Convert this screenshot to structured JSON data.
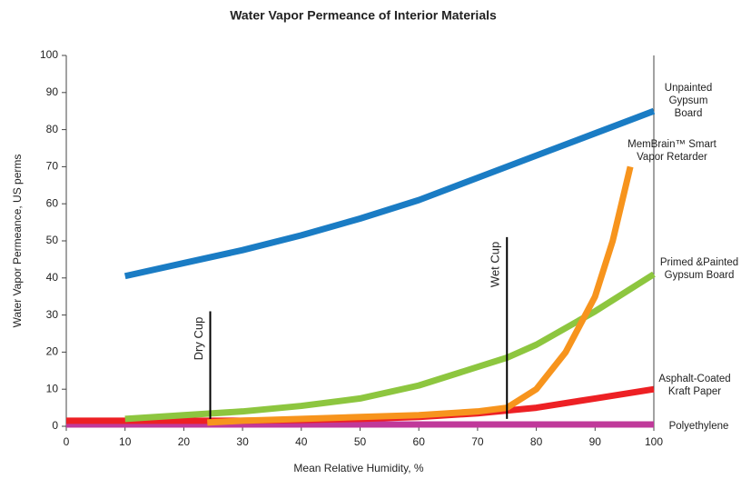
{
  "chart_data": {
    "type": "line",
    "title": "Water Vapor Permeance of Interior Materials",
    "x_label": "Mean Relative Humidity, %",
    "y_label": "Water Vapor Permeance, US perms",
    "xlim": [
      0,
      100
    ],
    "ylim": [
      0,
      100
    ],
    "xticks": [
      0,
      10,
      20,
      30,
      40,
      50,
      60,
      70,
      80,
      90,
      100
    ],
    "yticks": [
      0,
      10,
      20,
      30,
      40,
      50,
      60,
      70,
      80,
      90,
      100
    ],
    "series": [
      {
        "name": "Unpainted Gypsum Board",
        "color": "#1a7cc4",
        "x": [
          10,
          20,
          30,
          40,
          50,
          60,
          70,
          80,
          90,
          100
        ],
        "values": [
          40.5,
          44,
          47.5,
          51.5,
          56,
          61,
          67,
          73,
          79,
          85
        ]
      },
      {
        "name": "MemBrain™ Smart Vapor Retarder",
        "color": "#f7941d",
        "x": [
          24,
          30,
          40,
          50,
          60,
          70,
          75,
          80,
          85,
          90,
          93,
          96
        ],
        "values": [
          1,
          1.5,
          2,
          2.5,
          3,
          4,
          5,
          10,
          20,
          35,
          50,
          70
        ]
      },
      {
        "name": "Primed &Painted Gypsum Board",
        "color": "#8dc63f",
        "x": [
          10,
          20,
          30,
          40,
          50,
          60,
          70,
          75,
          80,
          90,
          100
        ],
        "values": [
          2,
          3,
          4,
          5.5,
          7.5,
          11,
          16,
          18.5,
          22,
          31,
          41
        ]
      },
      {
        "name": "Asphalt-Coated Kraft Paper",
        "color": "#ed2024",
        "x": [
          0,
          10,
          20,
          30,
          40,
          50,
          60,
          70,
          80,
          90,
          100
        ],
        "values": [
          1.5,
          1.5,
          1.5,
          1.5,
          1.7,
          2,
          2.5,
          3.5,
          5,
          7.5,
          10
        ]
      },
      {
        "name": "Polyethylene",
        "color": "#c0399a",
        "x": [
          0,
          100
        ],
        "values": [
          0.5,
          0.5
        ]
      }
    ],
    "annotations": [
      {
        "text": "Dry Cup",
        "x": 24.5,
        "y_range": [
          2,
          31
        ]
      },
      {
        "text": "Wet Cup",
        "x": 75,
        "y_range": [
          2,
          51
        ]
      }
    ]
  }
}
